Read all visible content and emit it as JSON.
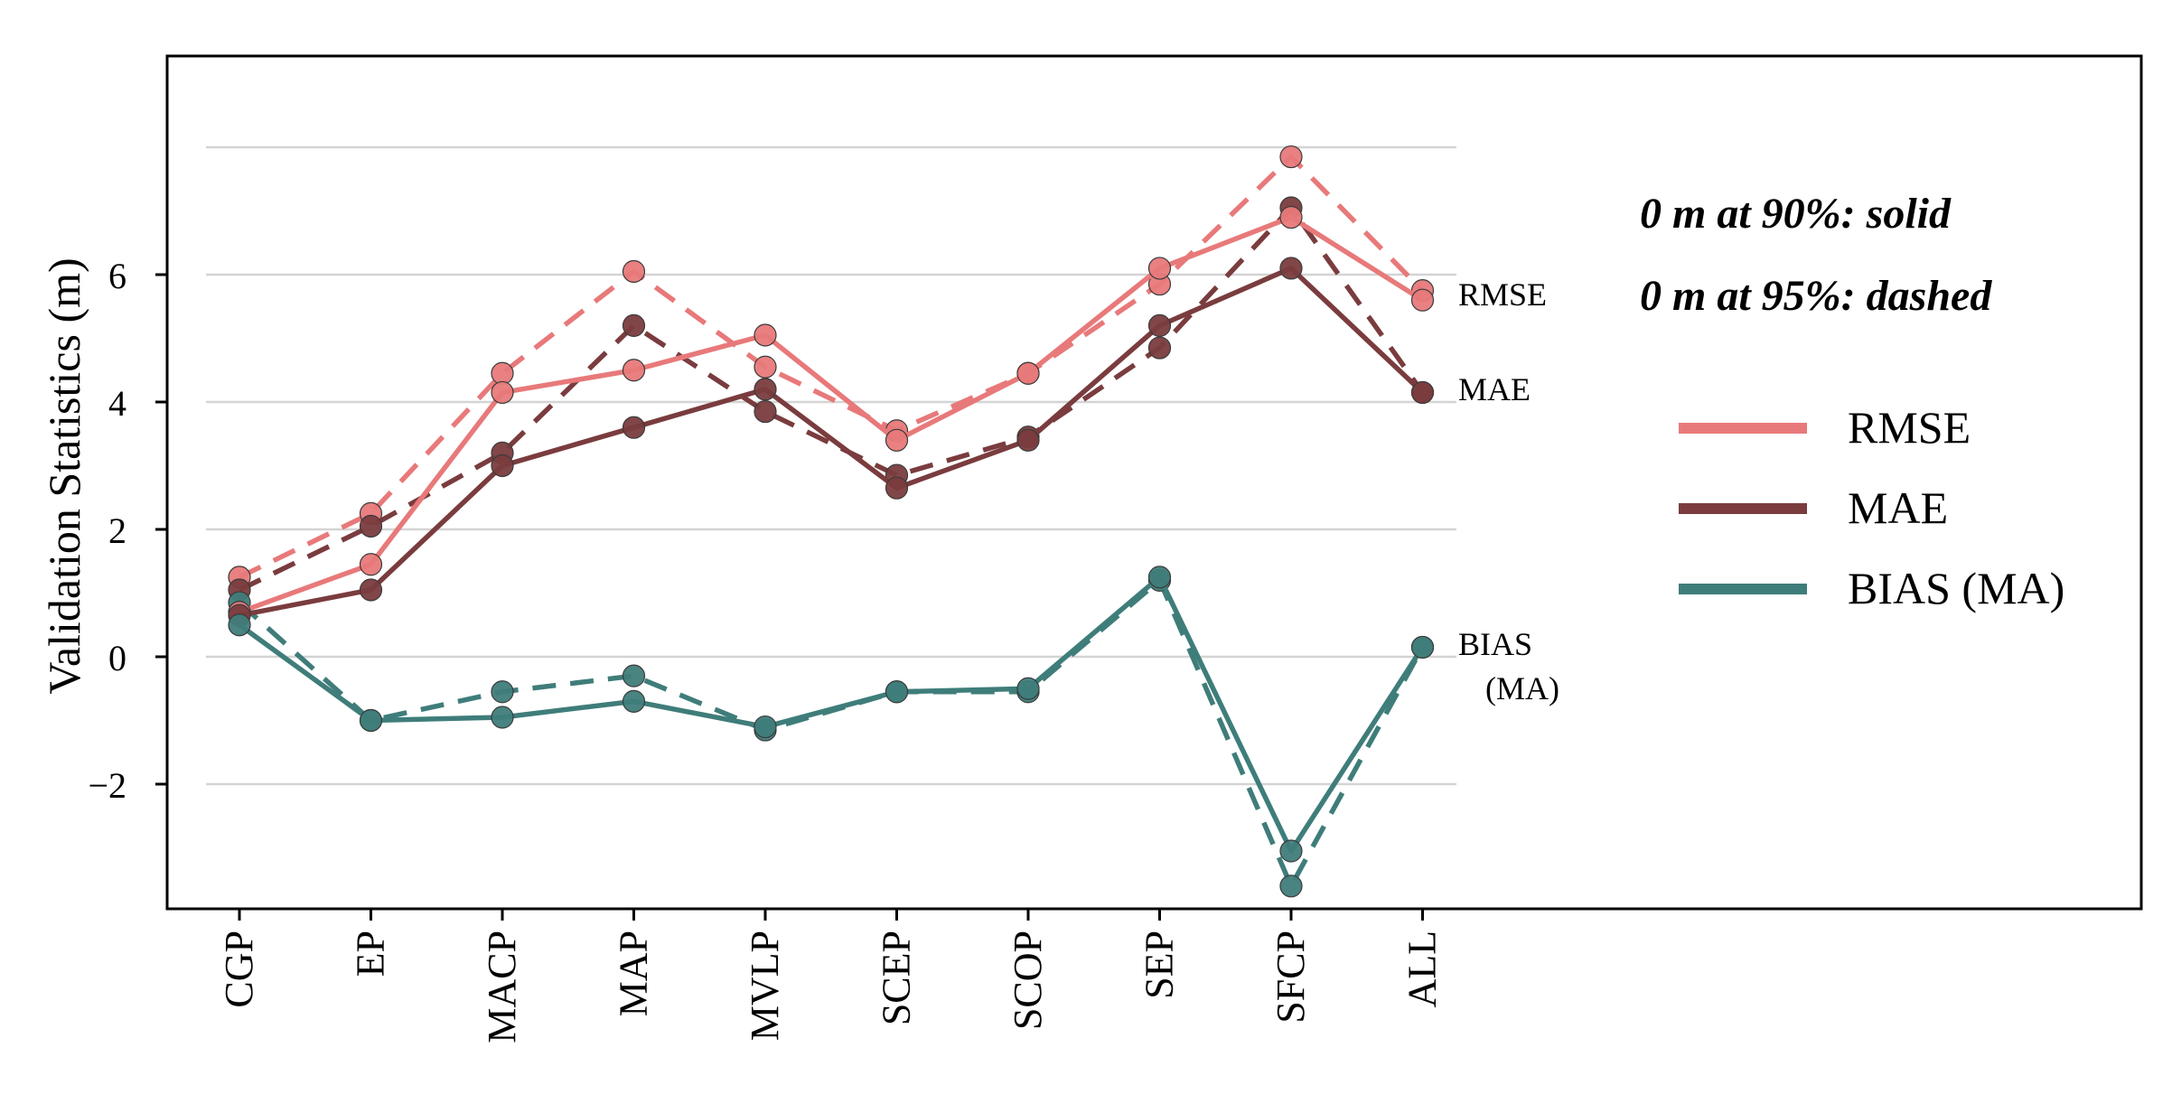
{
  "chart_data": {
    "type": "line",
    "title": "",
    "xlabel": "",
    "ylabel": "Validation Statistics (m)",
    "ylim": [
      -4,
      9.5
    ],
    "yticks": [
      -2,
      0,
      2,
      4,
      6
    ],
    "gridlines": [
      -2,
      0,
      2,
      4,
      6,
      8
    ],
    "categories": [
      "CGP",
      "EP",
      "MACP",
      "MAP",
      "MVLP",
      "SCEP",
      "SCOP",
      "SEP",
      "SFCP",
      "ALL"
    ],
    "annotations": {
      "solid_note": "0 m at 90%: solid",
      "dashed_note": "0 m at 95%: dashed"
    },
    "end_labels": {
      "rmse": "RMSE",
      "mae": "MAE",
      "bias_line1": "BIAS",
      "bias_line2": "(MA)"
    },
    "legend": {
      "position": "right",
      "items": [
        {
          "label": "RMSE",
          "color": "#E8797A"
        },
        {
          "label": "MAE",
          "color": "#7A3C3E"
        },
        {
          "label": "BIAS (MA)",
          "color": "#3F7D7A"
        }
      ]
    },
    "series": [
      {
        "name": "RMSE",
        "style": "solid",
        "color": "#E8797A",
        "values": [
          0.7,
          1.45,
          4.15,
          4.5,
          5.05,
          3.4,
          4.45,
          6.1,
          6.9,
          5.6
        ]
      },
      {
        "name": "RMSE",
        "style": "dashed",
        "color": "#E8797A",
        "values": [
          1.25,
          2.25,
          4.45,
          6.05,
          4.55,
          3.55,
          4.45,
          5.85,
          7.85,
          5.75
        ]
      },
      {
        "name": "MAE",
        "style": "solid",
        "color": "#7A3C3E",
        "values": [
          0.65,
          1.05,
          3.0,
          3.6,
          4.2,
          2.65,
          3.4,
          5.2,
          6.1,
          4.15
        ]
      },
      {
        "name": "MAE",
        "style": "dashed",
        "color": "#7A3C3E",
        "values": [
          1.05,
          2.05,
          3.2,
          5.2,
          3.85,
          2.85,
          3.45,
          4.85,
          7.05,
          4.15
        ]
      },
      {
        "name": "BIAS (MA)",
        "style": "solid",
        "color": "#3F7D7A",
        "values": [
          0.5,
          -1.0,
          -0.95,
          -0.7,
          -1.1,
          -0.55,
          -0.5,
          1.25,
          -3.05,
          0.15
        ]
      },
      {
        "name": "BIAS (MA)",
        "style": "dashed",
        "color": "#3F7D7A",
        "values": [
          0.85,
          -1.0,
          -0.55,
          -0.3,
          -1.15,
          -0.55,
          -0.55,
          1.2,
          -3.6,
          0.15
        ]
      }
    ]
  }
}
